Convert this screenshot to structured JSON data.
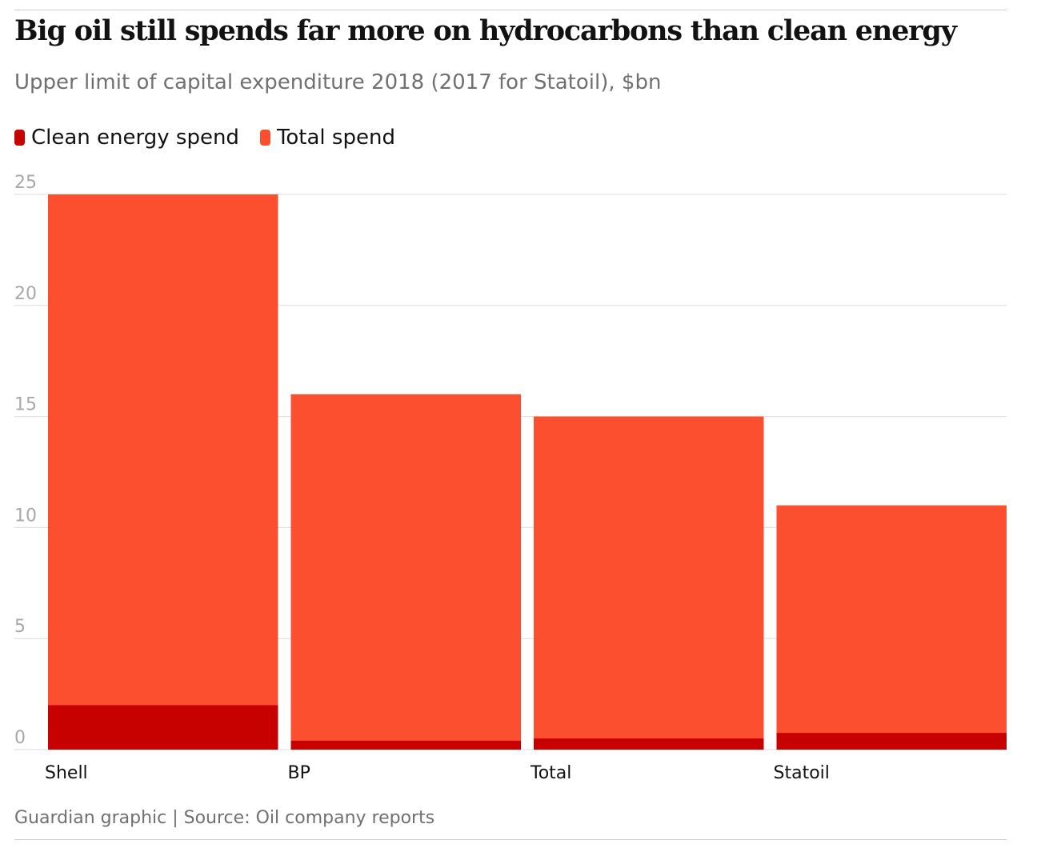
{
  "header": {
    "title": "Big oil still spends far more on hydrocarbons than clean energy",
    "subtitle": "Upper limit of capital expenditure 2018 (2017 for Statoil), $bn"
  },
  "legend": {
    "items": [
      {
        "label": "Clean energy spend",
        "color": "#c70000"
      },
      {
        "label": "Total spend",
        "color": "#fc4f30"
      }
    ]
  },
  "footer": {
    "source": "Guardian graphic | Source: Oil company reports"
  },
  "chart_data": {
    "type": "bar",
    "stacking": "overlaid",
    "categories": [
      "Shell",
      "BP",
      "Total",
      "Statoil"
    ],
    "series": [
      {
        "name": "Total spend",
        "color": "#fc4f30",
        "values": [
          25,
          16,
          15,
          11
        ]
      },
      {
        "name": "Clean energy spend",
        "color": "#c70000",
        "values": [
          2,
          0.4,
          0.5,
          0.75
        ]
      }
    ],
    "yticks": [
      0,
      5,
      10,
      15,
      20,
      25
    ],
    "ylim": [
      0,
      25
    ],
    "grid": true,
    "legend_position": "top-left"
  }
}
